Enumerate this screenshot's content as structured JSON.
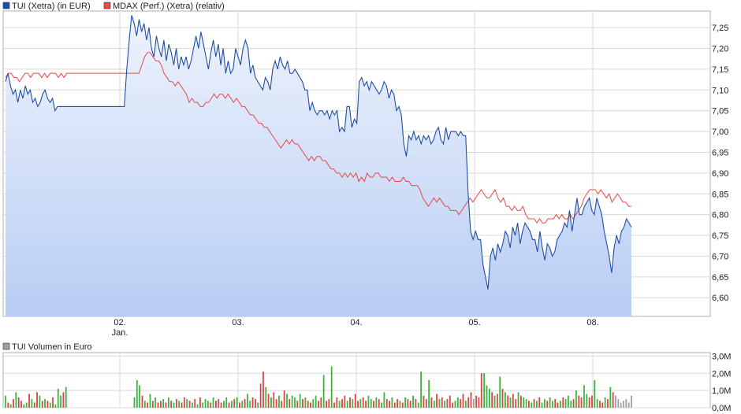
{
  "colors": {
    "tui_line": "#1f4ea8",
    "tui_fill_top": "#eef3fd",
    "tui_fill_bottom": "#b8cdf3",
    "mdax_line": "#e8484a",
    "vol_up": "#3cb43c",
    "vol_down": "#d24646",
    "vol_neutral": "#a0a0a0",
    "grid": "#d9d9d9",
    "frame": "#b0b0b0"
  },
  "chart_data": [
    {
      "type": "line",
      "legend_placement": "top-left",
      "grid": true,
      "ylim": [
        6.555,
        7.29
      ],
      "y_ticks": [
        "7,25",
        "7,20",
        "7,15",
        "7,10",
        "7,05",
        "7,00",
        "6,95",
        "6,90",
        "6,85",
        "6,80",
        "6,75",
        "6,70",
        "6,65",
        "6,60"
      ],
      "x_ticks": [
        "02.",
        "03.",
        "04.",
        "05.",
        "08."
      ],
      "x_tick_sublabel": "Jan.",
      "series": [
        {
          "name": "TUI (Xetra) (in EUR)",
          "axis": "left",
          "values": [
            7.12,
            7.14,
            7.11,
            7.09,
            7.1,
            7.07,
            7.1,
            7.08,
            7.11,
            7.09,
            7.1,
            7.07,
            7.08,
            7.06,
            7.07,
            7.09,
            7.1,
            7.08,
            7.07,
            7.08,
            7.05,
            7.06,
            7.06,
            7.06,
            7.06,
            7.06,
            7.06,
            7.06,
            7.06,
            7.06,
            7.06,
            7.06,
            7.06,
            7.06,
            7.06,
            7.06,
            7.06,
            7.06,
            7.06,
            7.06,
            7.06,
            7.06,
            7.06,
            7.06,
            7.06,
            7.06,
            7.06,
            7.06,
            7.06,
            7.15,
            7.22,
            7.28,
            7.26,
            7.23,
            7.27,
            7.24,
            7.26,
            7.22,
            7.25,
            7.2,
            7.18,
            7.23,
            7.2,
            7.18,
            7.22,
            7.17,
            7.21,
            7.19,
            7.16,
            7.2,
            7.15,
            7.18,
            7.16,
            7.18,
            7.15,
            7.17,
            7.2,
            7.23,
            7.2,
            7.24,
            7.21,
            7.18,
            7.15,
            7.19,
            7.22,
            7.18,
            7.21,
            7.16,
            7.2,
            7.14,
            7.17,
            7.14,
            7.15,
            7.2,
            7.18,
            7.16,
            7.2,
            7.22,
            7.2,
            7.14,
            7.16,
            7.13,
            7.12,
            7.11,
            7.1,
            7.13,
            7.12,
            7.1,
            7.15,
            7.17,
            7.15,
            7.18,
            7.16,
            7.15,
            7.17,
            7.14,
            7.14,
            7.15,
            7.14,
            7.13,
            7.12,
            7.1,
            7.1,
            7.05,
            7.07,
            7.05,
            7.04,
            7.05,
            7.05,
            7.04,
            7.05,
            7.03,
            7.05,
            7.04,
            7.05,
            7.0,
            7.01,
            7.0,
            7.06,
            7.06,
            7.01,
            7.03,
            7.02,
            7.12,
            7.13,
            7.11,
            7.12,
            7.1,
            7.12,
            7.11,
            7.1,
            7.09,
            7.1,
            7.12,
            7.11,
            7.08,
            7.1,
            7.09,
            7.05,
            7.06,
            7.04,
            6.97,
            6.94,
            6.99,
            6.98,
            7.0,
            6.98,
            6.99,
            6.97,
            6.99,
            6.98,
            6.99,
            6.97,
            6.98,
            7.0,
            7.01,
            6.98,
            6.97,
            7.01,
            6.98,
            7.0,
            7.0,
            7.0,
            6.99,
            7.0,
            6.99,
            6.99,
            6.85,
            6.76,
            6.74,
            6.76,
            6.74,
            6.74,
            6.68,
            6.65,
            6.62,
            6.7,
            6.72,
            6.69,
            6.73,
            6.71,
            6.73,
            6.76,
            6.75,
            6.72,
            6.77,
            6.75,
            6.78,
            6.73,
            6.76,
            6.78,
            6.77,
            6.76,
            6.74,
            6.74,
            6.71,
            6.76,
            6.72,
            6.69,
            6.73,
            6.72,
            6.7,
            6.71,
            6.74,
            6.75,
            6.76,
            6.78,
            6.77,
            6.81,
            6.76,
            6.8,
            6.84,
            6.8,
            6.8,
            6.82,
            6.83,
            6.84,
            6.81,
            6.8,
            6.84,
            6.82,
            6.8,
            6.76,
            6.73,
            6.7,
            6.66,
            6.72,
            6.75,
            6.73,
            6.76,
            6.77,
            6.79,
            6.78,
            6.77
          ]
        },
        {
          "name": "MDAX (Perf.) (Xetra) (relativ)",
          "axis": "left",
          "values": [
            7.13,
            7.14,
            7.14,
            7.13,
            7.13,
            7.12,
            7.13,
            7.14,
            7.14,
            7.13,
            7.14,
            7.14,
            7.14,
            7.13,
            7.14,
            7.13,
            7.14,
            7.14,
            7.14,
            7.13,
            7.14,
            7.13,
            7.14,
            7.14,
            7.14,
            7.14,
            7.14,
            7.14,
            7.14,
            7.14,
            7.14,
            7.14,
            7.14,
            7.14,
            7.14,
            7.14,
            7.14,
            7.14,
            7.14,
            7.14,
            7.14,
            7.14,
            7.14,
            7.14,
            7.14,
            7.14,
            7.14,
            7.14,
            7.14,
            7.16,
            7.18,
            7.19,
            7.19,
            7.18,
            7.17,
            7.17,
            7.16,
            7.14,
            7.13,
            7.12,
            7.12,
            7.11,
            7.12,
            7.11,
            7.1,
            7.09,
            7.07,
            7.08,
            7.07,
            7.07,
            7.06,
            7.06,
            7.07,
            7.07,
            7.08,
            7.09,
            7.08,
            7.09,
            7.09,
            7.08,
            7.09,
            7.08,
            7.07,
            7.08,
            7.07,
            7.06,
            7.06,
            7.05,
            7.04,
            7.04,
            7.03,
            7.02,
            7.02,
            7.01,
            7.01,
            7.0,
            6.99,
            6.98,
            6.97,
            6.96,
            6.97,
            6.98,
            6.97,
            6.98,
            6.97,
            6.97,
            6.96,
            6.95,
            6.94,
            6.93,
            6.94,
            6.93,
            6.94,
            6.94,
            6.93,
            6.93,
            6.92,
            6.91,
            6.91,
            6.9,
            6.9,
            6.89,
            6.9,
            6.89,
            6.9,
            6.89,
            6.9,
            6.88,
            6.89,
            6.88,
            6.9,
            6.89,
            6.89,
            6.9,
            6.9,
            6.89,
            6.89,
            6.89,
            6.88,
            6.89,
            6.88,
            6.88,
            6.88,
            6.89,
            6.88,
            6.88,
            6.87,
            6.87,
            6.87,
            6.86,
            6.84,
            6.83,
            6.82,
            6.83,
            6.84,
            6.83,
            6.84,
            6.83,
            6.82,
            6.82,
            6.81,
            6.81,
            6.81,
            6.8,
            6.81,
            6.82,
            6.83,
            6.84,
            6.83,
            6.84,
            6.85,
            6.86,
            6.85,
            6.84,
            6.84,
            6.85,
            6.86,
            6.84,
            6.83,
            6.84,
            6.82,
            6.82,
            6.81,
            6.82,
            6.81,
            6.81,
            6.82,
            6.8,
            6.79,
            6.79,
            6.79,
            6.78,
            6.79,
            6.78,
            6.78,
            6.79,
            6.79,
            6.79,
            6.8,
            6.79,
            6.8,
            6.79,
            6.79,
            6.8,
            6.79,
            6.8,
            6.81,
            6.82,
            6.84,
            6.85,
            6.86,
            6.86,
            6.86,
            6.85,
            6.86,
            6.85,
            6.84,
            6.85,
            6.83,
            6.84,
            6.85,
            6.84,
            6.83,
            6.83,
            6.82,
            6.82
          ]
        }
      ]
    },
    {
      "type": "bar",
      "legend_placement": "top-left",
      "grid": true,
      "ylim": [
        0,
        3.2
      ],
      "y_ticks": [
        "3,0M",
        "2,0M",
        "1,0M",
        "0,0M"
      ],
      "series": [
        {
          "name": "TUI Volumen in Euro",
          "unit": "Mio. EUR",
          "values": [
            0.7,
            0.3,
            0.2,
            0.5,
            0.9,
            0.6,
            0.4,
            0.2,
            0.3,
            0.8,
            0.5,
            0.3,
            0.9,
            0.7,
            0.4,
            0.5,
            0.4,
            0.3,
            0.6,
            0.2,
            1.1,
            0.7,
            0.9,
            1.2,
            0,
            0,
            0,
            0,
            0,
            0,
            0,
            0,
            0,
            0,
            0,
            0,
            0,
            0,
            0,
            0,
            0,
            0,
            0,
            0,
            0,
            0,
            0,
            0,
            0,
            0.6,
            1.6,
            1.3,
            0.7,
            0.4,
            0.3,
            0.8,
            0.4,
            0.6,
            0.3,
            0.4,
            0.5,
            0.3,
            0.6,
            0.4,
            0.3,
            0.5,
            0.4,
            0.3,
            0.6,
            0.5,
            0.4,
            0.3,
            0.5,
            0.2,
            0.6,
            0.3,
            0.5,
            0.4,
            0.3,
            0.6,
            0.4,
            0.5,
            0.3,
            0.4,
            0.6,
            0.3,
            0.4,
            0.5,
            0.6,
            0.3,
            0.4,
            0.5,
            0.8,
            0.4,
            0.6,
            0.5,
            0.3,
            1.4,
            2.1,
            1.2,
            0.8,
            0.6,
            0.9,
            0.5,
            0.7,
            0.4,
            1.0,
            0.8,
            0.5,
            0.7,
            0.6,
            0.4,
            0.8,
            0.5,
            0.6,
            0.4,
            0.3,
            0.5,
            0.7,
            0.4,
            0.6,
            1.9,
            0.4,
            0.5,
            2.4,
            0.3,
            0.6,
            0.4,
            0.5,
            0.7,
            0.4,
            0.6,
            0.5,
            0.8,
            0.4,
            0.5,
            0.6,
            0.4,
            0.7,
            0.5,
            0.4,
            0.6,
            0.5,
            0.3,
            0.9,
            0.5,
            0.4,
            0.6,
            0.3,
            0.5,
            0.4,
            0.3,
            0.6,
            0.5,
            0.4,
            0.7,
            0.5,
            0.3,
            2.1,
            0.7,
            0.5,
            1.6,
            0.6,
            0.4,
            0.8,
            0.5,
            0.6,
            0.4,
            0.5,
            0.7,
            0.3,
            0.4,
            0.6,
            0.5,
            0.8,
            0.4,
            0.6,
            0.9,
            0.5,
            0.7,
            0.6,
            2.0,
            2.0,
            1.3,
            1.1,
            0.9,
            0.7,
            0.8,
            1.8,
            1.1,
            0.9,
            0.7,
            0.6,
            0.8,
            0.5,
            0.9,
            0.7,
            0.6,
            0.5,
            0.4,
            0.3,
            0.5,
            0.4,
            0.6,
            0.3,
            0.5,
            0.4,
            0.6,
            0.4,
            0.5,
            0.3,
            0.4,
            0.6,
            0.5,
            0.7,
            0.4,
            0.5,
            1.0,
            0.7,
            0.6,
            1.3,
            0.8,
            0.6,
            0.7,
            1.6,
            0.5,
            0.4,
            0.3,
            0.6,
            0.5,
            1.2,
            0.9,
            0.7,
            0.5,
            0.3,
            0.4,
            0.5,
            0.3,
            0.7
          ],
          "direction": [
            "u",
            "d",
            "u",
            "d",
            "u",
            "d",
            "d",
            "u",
            "u",
            "d",
            "u",
            "d",
            "d",
            "u",
            "d",
            "u",
            "d",
            "u",
            "d",
            "u",
            "u",
            "u",
            "d",
            "u",
            "n",
            "n",
            "n",
            "n",
            "n",
            "n",
            "n",
            "n",
            "n",
            "n",
            "n",
            "n",
            "n",
            "n",
            "n",
            "n",
            "n",
            "n",
            "n",
            "n",
            "n",
            "n",
            "n",
            "n",
            "n",
            "u",
            "u",
            "u",
            "d",
            "u",
            "d",
            "u",
            "d",
            "u",
            "d",
            "d",
            "u",
            "d",
            "u",
            "d",
            "u",
            "d",
            "u",
            "d",
            "d",
            "u",
            "d",
            "u",
            "d",
            "u",
            "d",
            "u",
            "u",
            "u",
            "d",
            "u",
            "d",
            "d",
            "d",
            "u",
            "u",
            "d",
            "u",
            "d",
            "u",
            "d",
            "u",
            "d",
            "u",
            "u",
            "d",
            "d",
            "u",
            "d",
            "d",
            "u",
            "d",
            "u",
            "d",
            "d",
            "u",
            "d",
            "d",
            "u",
            "d",
            "u",
            "u",
            "d",
            "u",
            "d",
            "u",
            "d",
            "d",
            "u",
            "u",
            "d",
            "d",
            "u",
            "d",
            "d",
            "u",
            "d",
            "d",
            "u",
            "d",
            "d",
            "u",
            "d",
            "u",
            "d",
            "d",
            "u",
            "d",
            "d",
            "u",
            "u",
            "d",
            "u",
            "d",
            "u",
            "u",
            "d",
            "d",
            "u",
            "d",
            "d",
            "u",
            "d",
            "u",
            "d",
            "d",
            "u",
            "d",
            "u",
            "u",
            "d",
            "d",
            "u",
            "d",
            "u",
            "d",
            "u",
            "d",
            "u",
            "d",
            "d",
            "d",
            "u",
            "u",
            "d",
            "d",
            "u",
            "d",
            "d",
            "n",
            "d",
            "d",
            "d",
            "u",
            "u",
            "u",
            "d",
            "u",
            "d",
            "u",
            "d",
            "u",
            "d",
            "u",
            "d",
            "d",
            "u",
            "d",
            "u",
            "u",
            "d",
            "u",
            "d",
            "u",
            "d",
            "u",
            "u",
            "d",
            "u",
            "u",
            "d",
            "d",
            "u",
            "d",
            "u",
            "u",
            "u",
            "d",
            "u",
            "d",
            "d",
            "u",
            "u",
            "d",
            "d",
            "u",
            "u",
            "d",
            "d",
            "u",
            "d",
            "u",
            "d"
          ]
        }
      ]
    }
  ]
}
